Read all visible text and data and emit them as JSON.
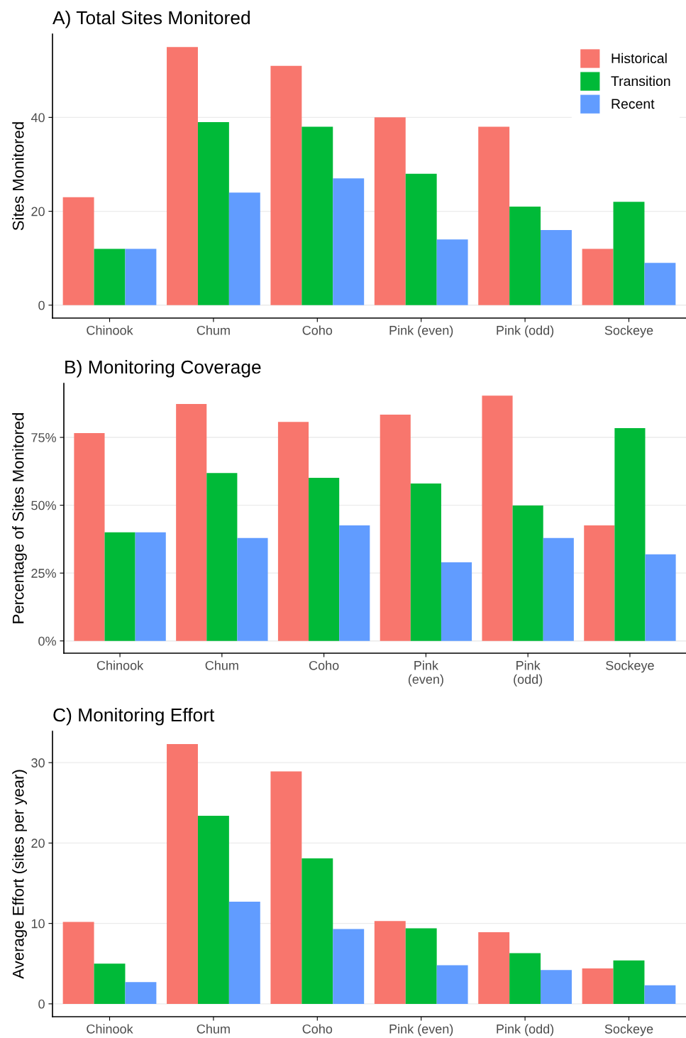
{
  "chart_data": [
    {
      "type": "bar",
      "title": "A) Total Sites Monitored",
      "ylabel": "Sites Monitored",
      "categories": [
        "Chinook",
        "Chum",
        "Coho",
        "Pink (even)",
        "Pink (odd)",
        "Sockeye"
      ],
      "series": [
        {
          "name": "Historical",
          "color": "#f8766d",
          "values": [
            23,
            55,
            51,
            40,
            38,
            12
          ]
        },
        {
          "name": "Transition",
          "color": "#00ba38",
          "values": [
            12,
            39,
            38,
            28,
            21,
            22
          ]
        },
        {
          "name": "Recent",
          "color": "#619cff",
          "values": [
            12,
            24,
            27,
            14,
            16,
            9
          ]
        }
      ],
      "ylim": [
        -2.75,
        57.75
      ],
      "yticks": [
        0,
        20,
        40
      ],
      "grid": "y",
      "legend": "top right"
    },
    {
      "type": "bar",
      "title": "B) Monitoring Coverage",
      "ylabel": "Percentage of Sites Monitored",
      "categories": [
        "Chinook",
        "Chum",
        "Coho",
        "Pink\n(even)",
        "Pink\n(odd)",
        "Sockeye"
      ],
      "series": [
        {
          "color": "#f8766d",
          "values": [
            76.6,
            87.3,
            80.7,
            83.4,
            90.4,
            42.6
          ]
        },
        {
          "color": "#00ba38",
          "values": [
            40,
            61.9,
            60.1,
            58,
            49.9,
            78.4
          ]
        },
        {
          "color": "#619cff",
          "values": [
            40,
            37.9,
            42.6,
            29,
            37.9,
            31.9
          ]
        }
      ],
      "ylim": [
        -4.52,
        94.9
      ],
      "yticks": [
        {
          "value": 0,
          "label": "0%"
        },
        {
          "value": 25,
          "label": "25%"
        },
        {
          "value": 50,
          "label": "50%"
        },
        {
          "value": 75,
          "label": "75%"
        }
      ],
      "grid": "y",
      "legend": false
    },
    {
      "type": "bar",
      "title": "C) Monitoring Effort",
      "ylabel": "Average Effort (sites per year)",
      "categories": [
        "Chinook",
        "Chum",
        "Coho",
        "Pink (even)",
        "Pink (odd)",
        "Sockeye"
      ],
      "series": [
        {
          "color": "#f8766d",
          "values": [
            10.2,
            32.3,
            28.9,
            10.3,
            8.9,
            4.4
          ]
        },
        {
          "color": "#00ba38",
          "values": [
            5.0,
            23.4,
            18.1,
            9.4,
            6.3,
            5.4
          ]
        },
        {
          "color": "#619cff",
          "values": [
            2.7,
            12.7,
            9.3,
            4.8,
            4.2,
            2.3
          ]
        }
      ],
      "ylim": [
        -1.6,
        33.9
      ],
      "yticks": [
        0,
        10,
        20,
        30
      ],
      "grid": "y",
      "legend": false
    }
  ]
}
